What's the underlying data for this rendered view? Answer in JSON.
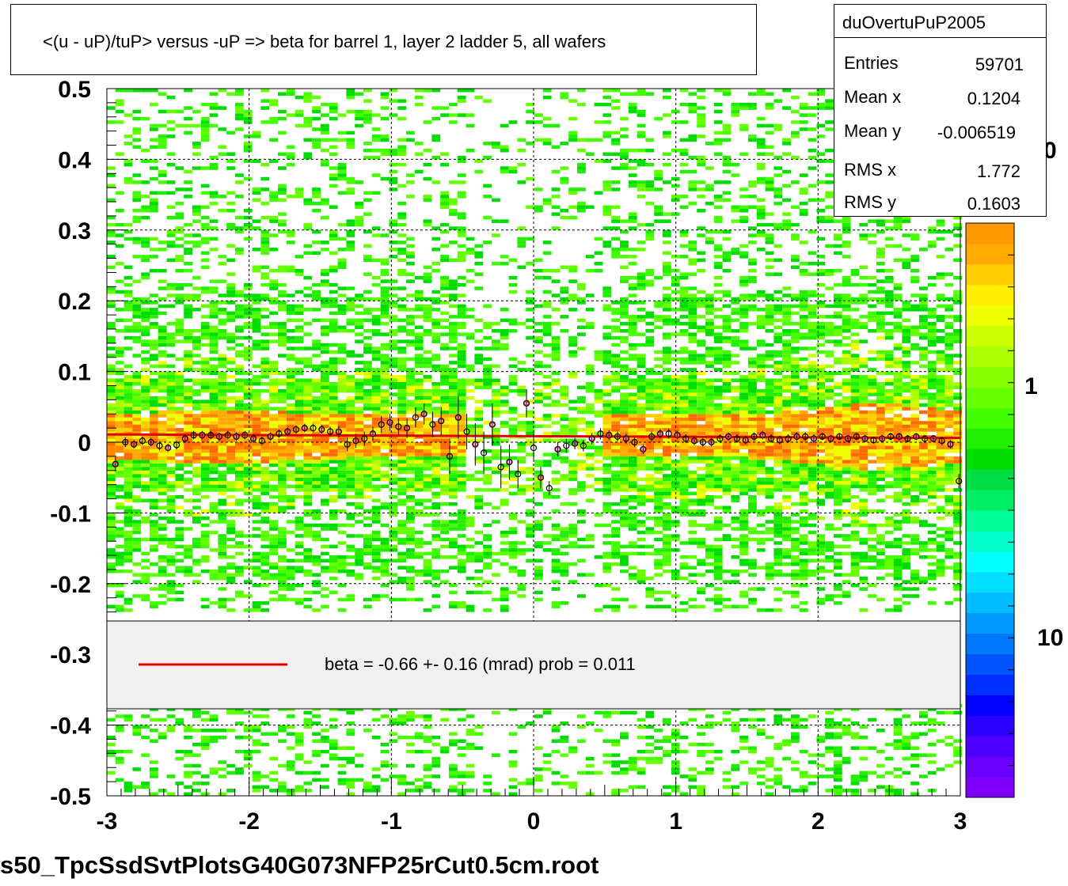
{
  "title": "<(u - uP)/tuP> versus  -uP => beta for barrel 1, layer 2 ladder 5, all wafers",
  "stats": {
    "name": "duOvertuPuP2005",
    "rows": [
      {
        "label": "Entries",
        "value": "59701"
      },
      {
        "label": "Mean x",
        "value": "0.1204"
      },
      {
        "label": "Mean y",
        "value": "-0.006519"
      },
      {
        "label": "RMS x",
        "value": "1.772"
      },
      {
        "label": "RMS y",
        "value": "0.1603"
      }
    ]
  },
  "legend": {
    "line_color": "#e00000",
    "text": "beta =   -0.66 +-  0.16 (mrad) prob = 0.011"
  },
  "filename": "s50_TpcSsdSvtPlotsG40G073NFP25rCut0.5cm.root",
  "chart_data": {
    "type": "heatmap",
    "xlim": [
      -3,
      3
    ],
    "ylim": [
      -0.5,
      0.5
    ],
    "x_ticks": [
      "-3",
      "-2",
      "-1",
      "0",
      "1",
      "2",
      "3"
    ],
    "y_ticks": [
      "0.5",
      "0.4",
      "0.3",
      "0.2",
      "0.1",
      "0",
      "-0.1",
      "-0.2",
      "-0.3",
      "-0.4",
      "-0.5"
    ],
    "grid": true,
    "colorbar": {
      "scale": "log",
      "visible_labels": [
        "0",
        "1",
        "10"
      ],
      "colors": [
        "#7f00ff",
        "#6a00ff",
        "#4c00ff",
        "#2a00ff",
        "#0000ff",
        "#0030ff",
        "#0055ff",
        "#0077ff",
        "#0099ff",
        "#00bbff",
        "#00ddff",
        "#00ffff",
        "#00ffcc",
        "#00ff99",
        "#00ee66",
        "#00dd44",
        "#00dd00",
        "#22ee00",
        "#44ff00",
        "#66ff00",
        "#88ff00",
        "#aaff00",
        "#ccff00",
        "#eeff00",
        "#ffee00",
        "#ffcc00",
        "#ffaa00",
        "#ff9900"
      ]
    },
    "fit": {
      "color": "#e00000",
      "x": [
        -3,
        3
      ],
      "y": [
        0.011,
        0.006
      ]
    },
    "profile_points": [
      {
        "x": -2.94,
        "y": -0.031,
        "err": 0.01
      },
      {
        "x": -2.87,
        "y": 0.0,
        "err": 0.007
      },
      {
        "x": -2.81,
        "y": -0.003,
        "err": 0.006
      },
      {
        "x": -2.75,
        "y": 0.002,
        "err": 0.006
      },
      {
        "x": -2.69,
        "y": 0.0,
        "err": 0.006
      },
      {
        "x": -2.63,
        "y": -0.005,
        "err": 0.006
      },
      {
        "x": -2.57,
        "y": -0.008,
        "err": 0.006
      },
      {
        "x": -2.51,
        "y": -0.004,
        "err": 0.006
      },
      {
        "x": -2.45,
        "y": 0.005,
        "err": 0.006
      },
      {
        "x": -2.39,
        "y": 0.01,
        "err": 0.006
      },
      {
        "x": -2.33,
        "y": 0.01,
        "err": 0.006
      },
      {
        "x": -2.27,
        "y": 0.01,
        "err": 0.006
      },
      {
        "x": -2.21,
        "y": 0.008,
        "err": 0.006
      },
      {
        "x": -2.15,
        "y": 0.01,
        "err": 0.006
      },
      {
        "x": -2.09,
        "y": 0.008,
        "err": 0.006
      },
      {
        "x": -2.03,
        "y": 0.01,
        "err": 0.006
      },
      {
        "x": -1.97,
        "y": 0.005,
        "err": 0.006
      },
      {
        "x": -1.91,
        "y": 0.002,
        "err": 0.006
      },
      {
        "x": -1.85,
        "y": 0.008,
        "err": 0.006
      },
      {
        "x": -1.79,
        "y": 0.012,
        "err": 0.006
      },
      {
        "x": -1.73,
        "y": 0.015,
        "err": 0.006
      },
      {
        "x": -1.67,
        "y": 0.018,
        "err": 0.006
      },
      {
        "x": -1.61,
        "y": 0.02,
        "err": 0.006
      },
      {
        "x": -1.55,
        "y": 0.02,
        "err": 0.006
      },
      {
        "x": -1.49,
        "y": 0.018,
        "err": 0.006
      },
      {
        "x": -1.43,
        "y": 0.015,
        "err": 0.007
      },
      {
        "x": -1.37,
        "y": 0.015,
        "err": 0.008
      },
      {
        "x": -1.31,
        "y": -0.003,
        "err": 0.01
      },
      {
        "x": -1.25,
        "y": 0.002,
        "err": 0.01
      },
      {
        "x": -1.19,
        "y": 0.005,
        "err": 0.01
      },
      {
        "x": -1.13,
        "y": 0.012,
        "err": 0.01
      },
      {
        "x": -1.07,
        "y": 0.025,
        "err": 0.012
      },
      {
        "x": -1.01,
        "y": 0.028,
        "err": 0.012
      },
      {
        "x": -0.95,
        "y": 0.022,
        "err": 0.012
      },
      {
        "x": -0.89,
        "y": 0.02,
        "err": 0.014
      },
      {
        "x": -0.83,
        "y": 0.035,
        "err": 0.014
      },
      {
        "x": -0.77,
        "y": 0.04,
        "err": 0.015
      },
      {
        "x": -0.71,
        "y": 0.025,
        "err": 0.018
      },
      {
        "x": -0.65,
        "y": 0.03,
        "err": 0.02
      },
      {
        "x": -0.59,
        "y": -0.02,
        "err": 0.025
      },
      {
        "x": -0.53,
        "y": 0.035,
        "err": 0.03
      },
      {
        "x": -0.47,
        "y": 0.015,
        "err": 0.025
      },
      {
        "x": -0.41,
        "y": -0.003,
        "err": 0.03
      },
      {
        "x": -0.35,
        "y": -0.015,
        "err": 0.03
      },
      {
        "x": -0.29,
        "y": 0.025,
        "err": 0.03
      },
      {
        "x": -0.23,
        "y": -0.035,
        "err": 0.03
      },
      {
        "x": -0.17,
        "y": -0.028,
        "err": 0.025
      },
      {
        "x": -0.11,
        "y": -0.045,
        "err": 0.02
      },
      {
        "x": -0.05,
        "y": 0.055,
        "err": 0.02
      },
      {
        "x": 0.0,
        "y": -0.008,
        "err": 0.02
      },
      {
        "x": 0.05,
        "y": -0.05,
        "err": 0.015
      },
      {
        "x": 0.11,
        "y": -0.065,
        "err": 0.01
      },
      {
        "x": 0.17,
        "y": -0.01,
        "err": 0.01
      },
      {
        "x": 0.23,
        "y": -0.005,
        "err": 0.01
      },
      {
        "x": 0.29,
        "y": -0.002,
        "err": 0.008
      },
      {
        "x": 0.35,
        "y": -0.005,
        "err": 0.008
      },
      {
        "x": 0.41,
        "y": 0.005,
        "err": 0.008
      },
      {
        "x": 0.47,
        "y": 0.012,
        "err": 0.008
      },
      {
        "x": 0.53,
        "y": 0.01,
        "err": 0.007
      },
      {
        "x": 0.59,
        "y": 0.008,
        "err": 0.007
      },
      {
        "x": 0.65,
        "y": 0.005,
        "err": 0.007
      },
      {
        "x": 0.71,
        "y": 0.0,
        "err": 0.007
      },
      {
        "x": 0.77,
        "y": -0.01,
        "err": 0.007
      },
      {
        "x": 0.83,
        "y": 0.008,
        "err": 0.007
      },
      {
        "x": 0.89,
        "y": 0.012,
        "err": 0.007
      },
      {
        "x": 0.95,
        "y": 0.012,
        "err": 0.007
      },
      {
        "x": 1.01,
        "y": 0.01,
        "err": 0.006
      },
      {
        "x": 1.07,
        "y": 0.005,
        "err": 0.006
      },
      {
        "x": 1.13,
        "y": 0.002,
        "err": 0.006
      },
      {
        "x": 1.19,
        "y": 0.0,
        "err": 0.006
      },
      {
        "x": 1.25,
        "y": 0.0,
        "err": 0.006
      },
      {
        "x": 1.31,
        "y": 0.005,
        "err": 0.006
      },
      {
        "x": 1.37,
        "y": 0.008,
        "err": 0.006
      },
      {
        "x": 1.43,
        "y": 0.005,
        "err": 0.006
      },
      {
        "x": 1.49,
        "y": 0.003,
        "err": 0.006
      },
      {
        "x": 1.55,
        "y": 0.008,
        "err": 0.006
      },
      {
        "x": 1.61,
        "y": 0.01,
        "err": 0.006
      },
      {
        "x": 1.67,
        "y": 0.005,
        "err": 0.006
      },
      {
        "x": 1.73,
        "y": 0.003,
        "err": 0.006
      },
      {
        "x": 1.79,
        "y": 0.005,
        "err": 0.006
      },
      {
        "x": 1.85,
        "y": 0.008,
        "err": 0.006
      },
      {
        "x": 1.91,
        "y": 0.008,
        "err": 0.006
      },
      {
        "x": 1.97,
        "y": 0.005,
        "err": 0.006
      },
      {
        "x": 2.03,
        "y": 0.008,
        "err": 0.005
      },
      {
        "x": 2.09,
        "y": 0.005,
        "err": 0.005
      },
      {
        "x": 2.15,
        "y": 0.008,
        "err": 0.005
      },
      {
        "x": 2.21,
        "y": 0.005,
        "err": 0.005
      },
      {
        "x": 2.27,
        "y": 0.008,
        "err": 0.005
      },
      {
        "x": 2.33,
        "y": 0.005,
        "err": 0.005
      },
      {
        "x": 2.39,
        "y": 0.003,
        "err": 0.005
      },
      {
        "x": 2.45,
        "y": 0.005,
        "err": 0.005
      },
      {
        "x": 2.51,
        "y": 0.008,
        "err": 0.005
      },
      {
        "x": 2.57,
        "y": 0.008,
        "err": 0.005
      },
      {
        "x": 2.63,
        "y": 0.005,
        "err": 0.005
      },
      {
        "x": 2.69,
        "y": 0.008,
        "err": 0.005
      },
      {
        "x": 2.75,
        "y": 0.005,
        "err": 0.005
      },
      {
        "x": 2.81,
        "y": 0.005,
        "err": 0.005
      },
      {
        "x": 2.87,
        "y": 0.002,
        "err": 0.006
      },
      {
        "x": 2.93,
        "y": -0.003,
        "err": 0.006
      },
      {
        "x": 2.99,
        "y": -0.055,
        "err": 0.01
      }
    ]
  }
}
